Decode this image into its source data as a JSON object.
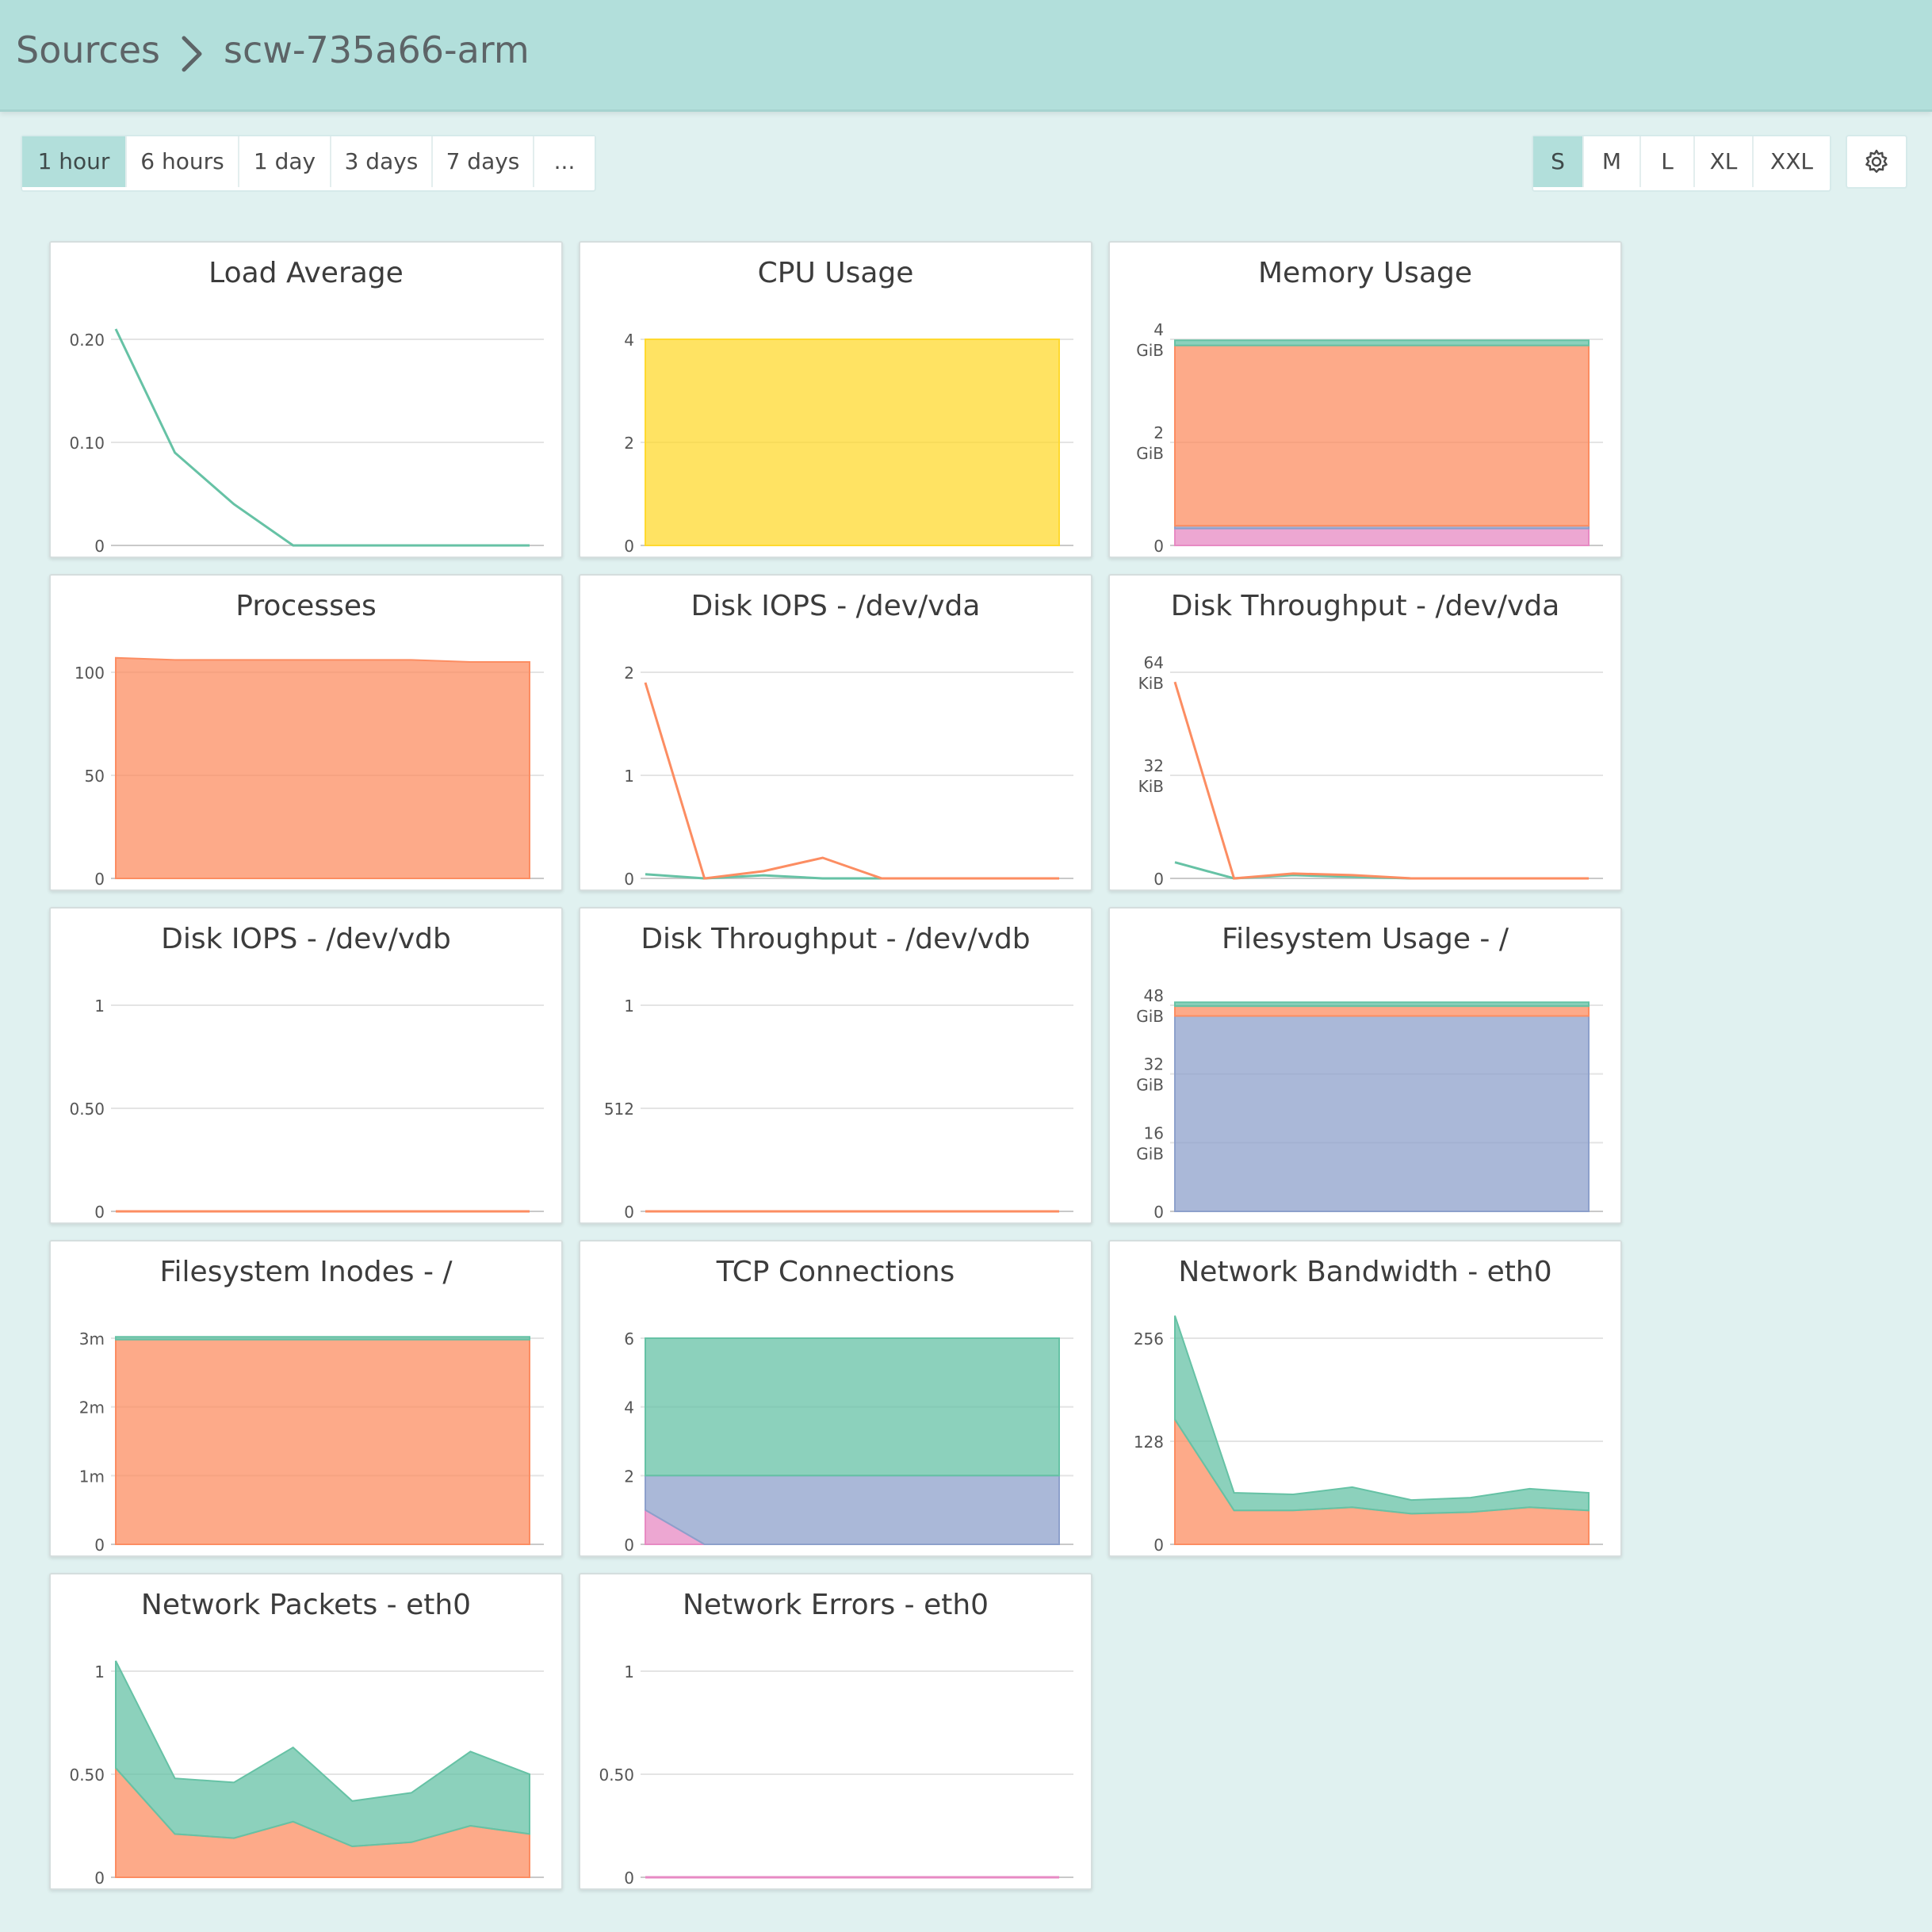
{
  "breadcrumb": {
    "root": "Sources",
    "current": "scw-735a66-arm"
  },
  "time_ranges": [
    "1 hour",
    "6 hours",
    "1 day",
    "3 days",
    "7 days",
    "..."
  ],
  "active_time_range": "1 hour",
  "sizes": [
    "S",
    "M",
    "L",
    "XL",
    "XXL"
  ],
  "active_size": "S",
  "settings_icon": "gear-icon",
  "colors": {
    "page_bg": "#e0f1f0",
    "header_bg": "#b2dfdb",
    "green": "#66c2a5",
    "orange": "#fc8d62",
    "blue": "#8da0cb",
    "pink": "#e78ac3",
    "yellow": "#ffd92f"
  },
  "chart_data": [
    {
      "title": "Load Average",
      "type": "line",
      "yticks": [
        "0.20",
        "0.10",
        "0"
      ],
      "ylim": [
        0,
        0.2
      ],
      "series": [
        {
          "color": "#66c2a5",
          "values": [
            0.21,
            0.09,
            0.04,
            0,
            0,
            0,
            0,
            0
          ]
        }
      ]
    },
    {
      "title": "CPU Usage",
      "type": "area",
      "yticks": [
        "4",
        "2",
        "0"
      ],
      "ylim": [
        0,
        4
      ],
      "series": [
        {
          "color": "#ffd92f",
          "values": [
            4,
            4,
            4,
            4,
            4,
            4,
            4,
            4
          ]
        }
      ]
    },
    {
      "title": "Memory Usage",
      "type": "area",
      "yticks": [
        "4\nGiB",
        "2\nGiB",
        "0"
      ],
      "ylim": [
        0,
        4
      ],
      "series": [
        {
          "color": "#e78ac3",
          "values": [
            0.33,
            0.33,
            0.33,
            0.33,
            0.33,
            0.33,
            0.33,
            0.33
          ]
        },
        {
          "color": "#8da0cb",
          "values": [
            0.05,
            0.05,
            0.05,
            0.05,
            0.05,
            0.05,
            0.05,
            0.05
          ]
        },
        {
          "color": "#fc8d62",
          "values": [
            3.5,
            3.5,
            3.5,
            3.5,
            3.5,
            3.5,
            3.5,
            3.5
          ]
        },
        {
          "color": "#66c2a5",
          "values": [
            0.1,
            0.1,
            0.1,
            0.1,
            0.1,
            0.1,
            0.1,
            0.1
          ]
        }
      ]
    },
    {
      "title": "Processes",
      "type": "area",
      "yticks": [
        "100",
        "50",
        "0"
      ],
      "ylim": [
        0,
        100
      ],
      "series": [
        {
          "color": "#fc8d62",
          "values": [
            107,
            106,
            106,
            106,
            106,
            106,
            105,
            105
          ]
        }
      ]
    },
    {
      "title": "Disk IOPS - /dev/vda",
      "type": "line",
      "yticks": [
        "2",
        "1",
        "0"
      ],
      "ylim": [
        0,
        2
      ],
      "series": [
        {
          "color": "#66c2a5",
          "values": [
            0.04,
            0,
            0.03,
            0,
            0,
            0,
            0,
            0
          ]
        },
        {
          "color": "#fc8d62",
          "values": [
            1.9,
            0,
            0.07,
            0.2,
            0,
            0,
            0,
            0
          ]
        }
      ]
    },
    {
      "title": "Disk Throughput - /dev/vda",
      "type": "line",
      "yticks": [
        "64\nKiB",
        "32\nKiB",
        "0"
      ],
      "ylim": [
        0,
        64
      ],
      "series": [
        {
          "color": "#66c2a5",
          "values": [
            5,
            0,
            1,
            0.5,
            0,
            0,
            0,
            0
          ]
        },
        {
          "color": "#fc8d62",
          "values": [
            61,
            0,
            1.5,
            1,
            0,
            0,
            0,
            0
          ]
        }
      ]
    },
    {
      "title": "Disk IOPS - /dev/vdb",
      "type": "line",
      "yticks": [
        "1",
        "0.50",
        "0"
      ],
      "ylim": [
        0,
        1
      ],
      "series": [
        {
          "color": "#fc8d62",
          "values": [
            0,
            0,
            0,
            0,
            0,
            0,
            0,
            0
          ]
        }
      ]
    },
    {
      "title": "Disk Throughput - /dev/vdb",
      "type": "line",
      "yticks": [
        "1",
        "512",
        "0"
      ],
      "ylim": [
        0,
        1024
      ],
      "series": [
        {
          "color": "#fc8d62",
          "values": [
            0,
            0,
            0,
            0,
            0,
            0,
            0,
            0
          ]
        }
      ]
    },
    {
      "title": "Filesystem Usage - /",
      "type": "area",
      "yticks": [
        "48\nGiB",
        "32\nGiB",
        "16\nGiB",
        "0"
      ],
      "ylim": [
        0,
        48
      ],
      "series": [
        {
          "color": "#8da0cb",
          "values": [
            45.5,
            45.5,
            45.5,
            45.5,
            45.5,
            45.5,
            45.5,
            45.5
          ]
        },
        {
          "color": "#fc8d62",
          "values": [
            2.3,
            2.3,
            2.3,
            2.3,
            2.3,
            2.3,
            2.3,
            2.3
          ]
        },
        {
          "color": "#66c2a5",
          "values": [
            0.9,
            0.9,
            0.9,
            0.9,
            0.9,
            0.9,
            0.9,
            0.9
          ]
        }
      ]
    },
    {
      "title": "Filesystem Inodes - /",
      "type": "area",
      "yticks": [
        "3m",
        "2m",
        "1m",
        "0"
      ],
      "ylim": [
        0,
        3
      ],
      "series": [
        {
          "color": "#fc8d62",
          "values": [
            2.98,
            2.98,
            2.98,
            2.98,
            2.98,
            2.98,
            2.98,
            2.98
          ]
        },
        {
          "color": "#66c2a5",
          "values": [
            0.04,
            0.04,
            0.04,
            0.04,
            0.04,
            0.04,
            0.04,
            0.04
          ]
        }
      ]
    },
    {
      "title": "TCP Connections",
      "type": "area",
      "yticks": [
        "6",
        "4",
        "2",
        "0"
      ],
      "ylim": [
        0,
        6
      ],
      "series": [
        {
          "color": "#e78ac3",
          "values": [
            1,
            0,
            0,
            0,
            0,
            0,
            0,
            0
          ]
        },
        {
          "color": "#8da0cb",
          "values": [
            1,
            2,
            2,
            2,
            2,
            2,
            2,
            2
          ]
        },
        {
          "color": "#66c2a5",
          "values": [
            4,
            4,
            4,
            4,
            4,
            4,
            4,
            4
          ]
        }
      ]
    },
    {
      "title": "Network Bandwidth - eth0",
      "type": "area",
      "yticks": [
        "256",
        "128",
        "0"
      ],
      "ylim": [
        0,
        256
      ],
      "series": [
        {
          "color": "#fc8d62",
          "values": [
            155,
            42,
            42,
            46,
            38,
            40,
            46,
            42
          ]
        },
        {
          "color": "#66c2a5",
          "values": [
            129,
            22,
            20,
            25,
            17,
            18,
            23,
            22
          ]
        }
      ]
    },
    {
      "title": "Network Packets - eth0",
      "type": "area",
      "yticks": [
        "1",
        "0.50",
        "0"
      ],
      "ylim": [
        0,
        1
      ],
      "series": [
        {
          "color": "#fc8d62",
          "values": [
            0.53,
            0.21,
            0.19,
            0.27,
            0.15,
            0.17,
            0.25,
            0.21
          ]
        },
        {
          "color": "#66c2a5",
          "values": [
            0.52,
            0.27,
            0.27,
            0.36,
            0.22,
            0.24,
            0.36,
            0.29
          ]
        }
      ]
    },
    {
      "title": "Network Errors - eth0",
      "type": "line",
      "yticks": [
        "1",
        "0.50",
        "0"
      ],
      "ylim": [
        0,
        1
      ],
      "series": [
        {
          "color": "#e78ac3",
          "values": [
            0,
            0,
            0,
            0,
            0,
            0,
            0,
            0
          ]
        }
      ]
    }
  ]
}
